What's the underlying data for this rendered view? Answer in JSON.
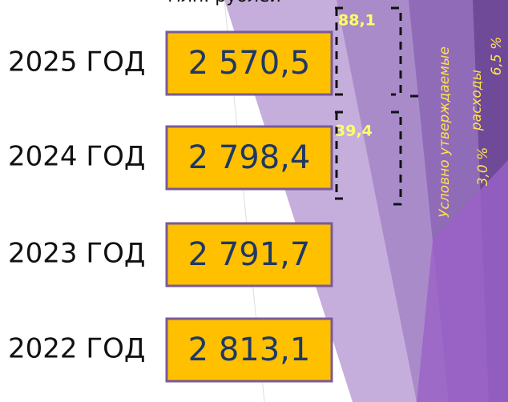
{
  "unit": "млн. рублей",
  "rows": [
    {
      "year": "2025 ГОД",
      "value": "2 570,5"
    },
    {
      "year": "2024 ГОД",
      "value": "2 798,4"
    },
    {
      "year": "2023 ГОД",
      "value": "2 791,7"
    },
    {
      "year": "2022 ГОД",
      "value": "2 813,1"
    }
  ],
  "increments": [
    "88,1",
    "39,4"
  ],
  "side_label": [
    "Условно утверждаемые",
    "расходы"
  ],
  "percents": [
    "3,0 %",
    "6,5 %"
  ]
}
